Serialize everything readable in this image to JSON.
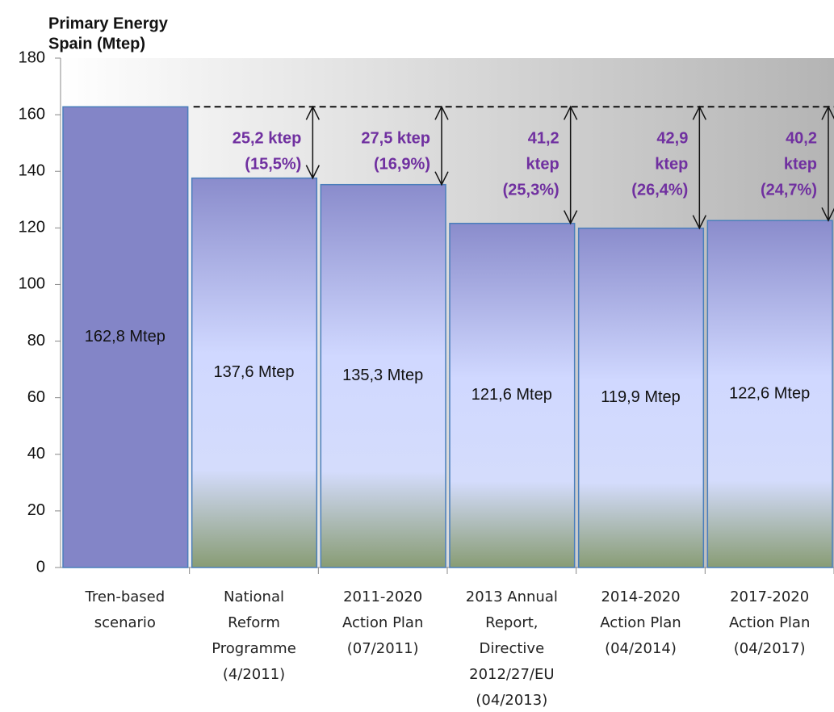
{
  "chart_data": {
    "type": "bar",
    "y_axis_title": [
      "Primary Energy",
      "Spain (Mtep)"
    ],
    "categories": [
      [
        "Tren-based",
        "scenario"
      ],
      [
        "National",
        "Reform",
        "Programme",
        "(4/2011)"
      ],
      [
        "2011-2020",
        "Action Plan",
        "(07/2011)"
      ],
      [
        "2013 Annual",
        "Report,",
        "Directive",
        "2012/27/EU",
        "(04/2013)"
      ],
      [
        "2014-2020",
        "Action Plan",
        "(04/2014)"
      ],
      [
        "2017-2020",
        "Action Plan",
        "(04/2017)"
      ]
    ],
    "values": [
      162.8,
      137.6,
      135.3,
      121.6,
      119.9,
      122.6
    ],
    "value_labels": [
      "162,8 Mtep",
      "137,6 Mtep",
      "135,3 Mtep",
      "121,6 Mtep",
      "119,9 Mtep",
      "122,6 Mtep"
    ],
    "annotations": [
      null,
      [
        "25,2 ktep",
        "(15,5%)"
      ],
      [
        "27,5 ktep",
        "(16,9%)"
      ],
      [
        "41,2",
        "ktep",
        "(25,3%)"
      ],
      [
        "42,9",
        "ktep",
        "(26,4%)"
      ],
      [
        "40,2",
        "ktep",
        "(24,7%)"
      ]
    ],
    "ylim": [
      0,
      180
    ],
    "yticks": [
      0,
      20,
      40,
      60,
      80,
      100,
      120,
      140,
      160,
      180
    ]
  }
}
